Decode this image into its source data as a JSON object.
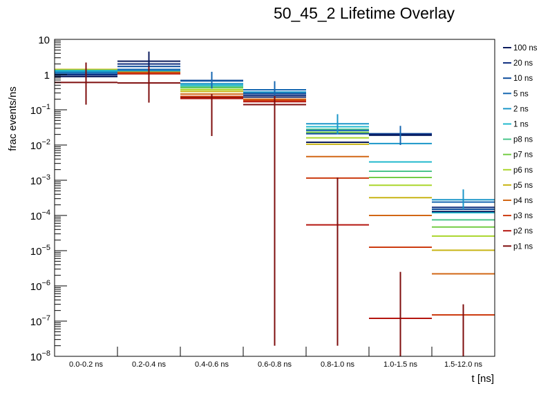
{
  "chart_data": {
    "type": "line",
    "subtype": "step-histogram-overlay-with-error-bars",
    "title": "50_45_2 Lifetime Overlay",
    "xlabel": "t [ns]",
    "ylabel": "frac events/ns",
    "yscale": "log",
    "ylim": [
      1e-08,
      10
    ],
    "ytick_labels": [
      {
        "value": 10,
        "base": "10",
        "exp": ""
      },
      {
        "value": 1,
        "base": "1",
        "exp": ""
      },
      {
        "value": 0.1,
        "base": "10",
        "exp": "−1"
      },
      {
        "value": 0.01,
        "base": "10",
        "exp": "−2"
      },
      {
        "value": 0.001,
        "base": "10",
        "exp": "−3"
      },
      {
        "value": 0.0001,
        "base": "10",
        "exp": "−4"
      },
      {
        "value": 1e-05,
        "base": "10",
        "exp": "−5"
      },
      {
        "value": 1e-06,
        "base": "10",
        "exp": "−6"
      },
      {
        "value": 1e-07,
        "base": "10",
        "exp": "−7"
      },
      {
        "value": 1e-08,
        "base": "10",
        "exp": "−8"
      }
    ],
    "categories": [
      "0.0-0.2 ns",
      "0.2-0.4 ns",
      "0.4-0.6 ns",
      "0.6-0.8 ns",
      "0.8-1.0 ns",
      "1.0-1.5 ns",
      "1.5-12.0 ns"
    ],
    "legend_position": "right",
    "grid": false,
    "series": [
      {
        "name": "100 ns",
        "color": "#0a1a5c",
        "values": [
          0.88,
          2.4,
          null,
          0.23,
          0.012,
          0.019,
          0.00013
        ],
        "errors": [
          null,
          [
            1.6,
            4.5
          ],
          null,
          null,
          null,
          null,
          null
        ]
      },
      {
        "name": "20 ns",
        "color": "#0b2b7d",
        "values": [
          0.98,
          2.0,
          null,
          0.26,
          null,
          0.02,
          0.00017
        ],
        "errors": [
          null,
          null,
          null,
          null,
          null,
          null,
          null
        ]
      },
      {
        "name": "10 ns",
        "color": "#0b4a9a",
        "values": [
          1.0,
          1.7,
          0.68,
          0.29,
          0.021,
          0.021,
          0.00015
        ],
        "errors": [
          null,
          null,
          null,
          null,
          null,
          null,
          null
        ]
      },
      {
        "name": "5 ns",
        "color": "#1466b0",
        "values": [
          1.1,
          1.4,
          0.66,
          0.37,
          0.026,
          0.019,
          0.00024
        ],
        "errors": [
          null,
          null,
          [
            0.4,
            1.2
          ],
          [
            0.2,
            0.65
          ],
          null,
          [
            0.01,
            0.035
          ],
          null
        ]
      },
      {
        "name": "2 ns",
        "color": "#1a96c8",
        "values": [
          1.2,
          1.3,
          0.55,
          0.32,
          0.04,
          0.011,
          0.00028
        ],
        "errors": [
          null,
          null,
          null,
          null,
          [
            0.02,
            0.075
          ],
          null,
          [
            0.00015,
            0.00055
          ]
        ]
      },
      {
        "name": "1 ns",
        "color": "#20b8cc",
        "values": [
          1.3,
          1.3,
          0.5,
          0.3,
          0.033,
          0.0033,
          0.00012
        ],
        "errors": [
          null,
          null,
          null,
          null,
          null,
          null,
          null
        ]
      },
      {
        "name": "p8 ns",
        "color": "#48c48a",
        "values": [
          1.3,
          1.3,
          0.45,
          null,
          0.028,
          0.0018,
          7.5e-05
        ],
        "errors": [
          null,
          null,
          null,
          null,
          null,
          null,
          null
        ]
      },
      {
        "name": "p7 ns",
        "color": "#74cc44",
        "values": [
          1.3,
          1.3,
          0.42,
          null,
          0.023,
          0.0012,
          4.7e-05
        ],
        "errors": [
          null,
          null,
          null,
          null,
          null,
          null,
          null
        ]
      },
      {
        "name": "p6 ns",
        "color": "#aad62a",
        "values": [
          1.35,
          1.3,
          0.37,
          null,
          0.016,
          0.00072,
          2.6e-05
        ],
        "errors": [
          null,
          null,
          null,
          null,
          null,
          null,
          null
        ]
      },
      {
        "name": "p5 ns",
        "color": "#c8b414",
        "values": [
          1.4,
          1.25,
          0.33,
          null,
          0.0105,
          0.00032,
          1.03e-05
        ],
        "errors": [
          null,
          null,
          null,
          null,
          null,
          null,
          null
        ]
      },
      {
        "name": "p4 ns",
        "color": "#d26614",
        "values": [
          1.35,
          1.2,
          0.28,
          0.2,
          0.0047,
          0.0001,
          2.2e-06
        ],
        "errors": [
          null,
          null,
          null,
          null,
          null,
          null,
          null
        ]
      },
      {
        "name": "p3 ns",
        "color": "#cc3a0e",
        "values": [
          1.25,
          1.1,
          0.24,
          0.185,
          0.00115,
          1.25e-05,
          1.5e-07
        ],
        "errors": [
          null,
          null,
          null,
          null,
          null,
          null,
          null
        ]
      },
      {
        "name": "p2 ns",
        "color": "#b4140e",
        "values": [
          1.15,
          1.05,
          0.21,
          0.17,
          5.4e-05,
          1.2e-07,
          null
        ],
        "errors": [
          null,
          null,
          null,
          null,
          null,
          null,
          null
        ]
      },
      {
        "name": "p1 ns",
        "color": "#7e0c0c",
        "values": [
          0.6,
          0.58,
          0.22,
          0.14,
          null,
          null,
          null
        ],
        "errors": [
          [
            0.14,
            2.2
          ],
          [
            0.16,
            1.7
          ],
          [
            0.018,
            0.28
          ],
          [
            2e-08,
            0.25
          ],
          [
            2e-08,
            0.0012
          ],
          [
            1e-08,
            2.5e-06
          ],
          [
            1e-08,
            3e-07
          ]
        ]
      }
    ],
    "error_bar_colors": {
      "note": "vertical error bars are overlapping segments drawn per bin"
    }
  }
}
